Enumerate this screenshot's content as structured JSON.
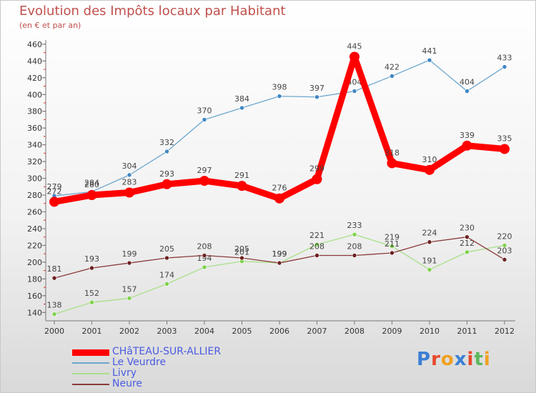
{
  "title": "Evolution des Impôts locaux par Habitant",
  "subtitle": "(en € et par an)",
  "brand": {
    "text": "Proxiti",
    "letter_colors": [
      "#3a7fd4",
      "#e8482c",
      "#f0a020",
      "#3a7fd4",
      "#e8482c",
      "#5cb85c",
      "#f0a020"
    ]
  },
  "chart_data": {
    "type": "line",
    "title": "Evolution des Impôts locaux par Habitant",
    "subtitle": "(en € et par an)",
    "xlabel": "",
    "ylabel": "",
    "x": [
      "2000",
      "2001",
      "2002",
      "2003",
      "2004",
      "2005",
      "2006",
      "2007",
      "2008",
      "2009",
      "2010",
      "2011",
      "2012"
    ],
    "ylim": [
      130,
      465
    ],
    "yticks": [
      "140",
      "160",
      "180",
      "200",
      "220",
      "240",
      "260",
      "280",
      "300",
      "320",
      "340",
      "360",
      "380",
      "400",
      "420",
      "440",
      "460"
    ],
    "grid": false,
    "legend_position": "bottom-left",
    "series": [
      {
        "name": "CHâTEAU-SUR-ALLIER",
        "color": "#ff0000",
        "emphasis": true,
        "values": [
          272,
          280,
          283,
          293,
          297,
          291,
          276,
          299,
          445,
          318,
          310,
          339,
          335
        ],
        "labels": [
          "272",
          "280",
          "283",
          "293",
          "297",
          "291",
          "276",
          "299",
          "445",
          "318",
          "310",
          "339",
          "335"
        ]
      },
      {
        "name": "Le Veurdre",
        "color": "#6ca6cd",
        "marker_color": "#3f86c3",
        "values": [
          279,
          284,
          304,
          332,
          370,
          384,
          398,
          397,
          404,
          422,
          441,
          404,
          433
        ],
        "labels": [
          "279",
          "284",
          "304",
          "332",
          "370",
          "384",
          "398",
          "397",
          "404",
          "422",
          "441",
          "404",
          "433"
        ]
      },
      {
        "name": "Livry",
        "color": "#a8e08a",
        "marker_color": "#7fd14a",
        "values": [
          138,
          152,
          157,
          174,
          194,
          201,
          199,
          221,
          233,
          219,
          191,
          212,
          220
        ],
        "labels": [
          "138",
          "152",
          "157",
          "174",
          "194",
          "201",
          "199",
          "221",
          "233",
          "219",
          "191",
          "212",
          "220"
        ]
      },
      {
        "name": "Neure",
        "color": "#8b3a3a",
        "marker_color": "#6b2020",
        "values": [
          181,
          193,
          199,
          205,
          208,
          205,
          199,
          208,
          208,
          211,
          224,
          230,
          203
        ],
        "labels": [
          "181",
          "193",
          "199",
          "205",
          "208",
          "205",
          "199",
          "208",
          "208",
          "211",
          "224",
          "230",
          "203"
        ]
      }
    ]
  }
}
